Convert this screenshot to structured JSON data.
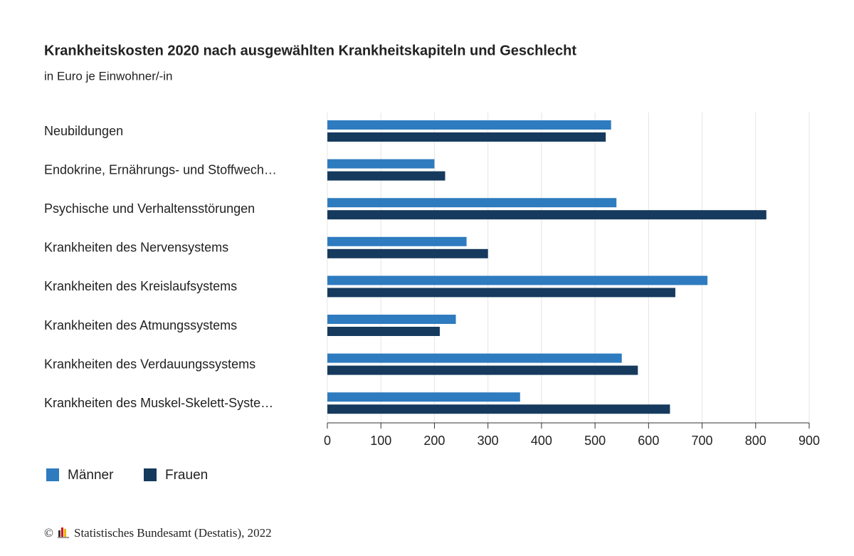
{
  "chart_data": {
    "type": "bar",
    "orientation": "horizontal",
    "title": "Krankheitskosten 2020 nach ausgewählten Krankheitskapiteln und Geschlecht",
    "subtitle": "in Euro je Einwohner/-in",
    "categories": [
      "Neubildungen",
      "Endokrine, Ernährungs- und Stoffwech…",
      "Psychische und Verhaltensstörungen",
      "Krankheiten des Nervensystems",
      "Krankheiten des Kreislaufsystems",
      "Krankheiten des Atmungssystems",
      "Krankheiten des Verdauungssystems",
      "Krankheiten des Muskel-Skelett-Syste…"
    ],
    "series": [
      {
        "name": "Männer",
        "color": "#2e7bbf",
        "values": [
          530,
          200,
          540,
          260,
          710,
          240,
          550,
          360
        ]
      },
      {
        "name": "Frauen",
        "color": "#163a5e",
        "values": [
          520,
          220,
          820,
          300,
          650,
          210,
          580,
          640
        ]
      }
    ],
    "xlim": [
      0,
      900
    ],
    "xticks": [
      0,
      100,
      200,
      300,
      400,
      500,
      600,
      700,
      800,
      900
    ],
    "grid": true,
    "legend": "bottom-left",
    "copyright": "©",
    "source": "Statistisches Bundesamt (Destatis), 2022"
  }
}
